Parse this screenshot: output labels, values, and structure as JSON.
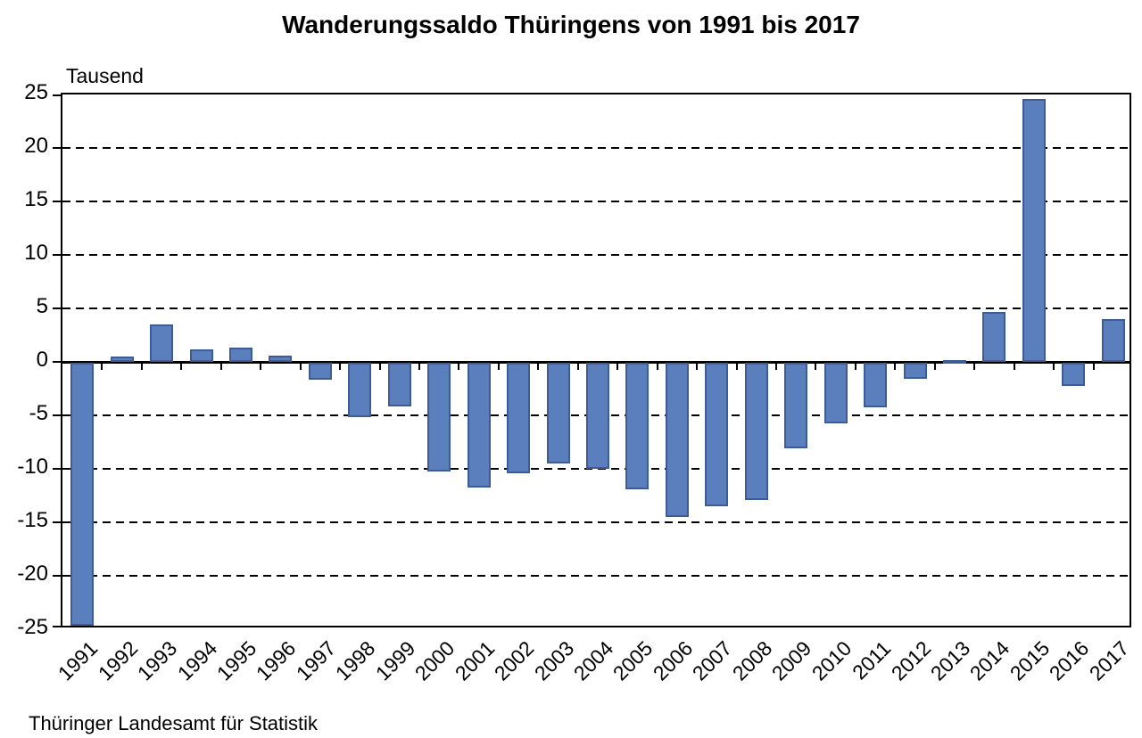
{
  "title": "Wanderungssaldo Thüringens von 1991 bis 2017",
  "unit_label": "Tausend",
  "source": "Thüringer Landesamt für Statistik",
  "colors": {
    "bar_fill": "#5b7ebd",
    "bar_border": "#3d5c96",
    "axis": "#000000",
    "background": "#ffffff"
  },
  "chart_data": {
    "type": "bar",
    "title": "Wanderungssaldo Thüringens von 1991 bis 2017",
    "xlabel": "",
    "ylabel": "Tausend",
    "ylim": [
      -25,
      25
    ],
    "ytick_step": 5,
    "yticks": [
      25,
      20,
      15,
      10,
      5,
      0,
      -5,
      -10,
      -15,
      -20,
      -25
    ],
    "grid": "horizontal dashed, solid zero line, framed plot",
    "legend": "none",
    "categories": [
      "1991",
      "1992",
      "1993",
      "1994",
      "1995",
      "1996",
      "1997",
      "1998",
      "1999",
      "2000",
      "2001",
      "2002",
      "2003",
      "2004",
      "2005",
      "2006",
      "2007",
      "2008",
      "2009",
      "2010",
      "2011",
      "2012",
      "2013",
      "2014",
      "2015",
      "2016",
      "2017"
    ],
    "values": [
      -24.6,
      0.5,
      3.5,
      1.2,
      1.3,
      0.6,
      -1.6,
      -5.1,
      -4.1,
      -10.2,
      -11.7,
      -10.3,
      -9.4,
      -9.9,
      -11.8,
      -14.4,
      -13.4,
      -12.8,
      -8.0,
      -5.7,
      -4.2,
      -1.5,
      0.1,
      4.7,
      24.6,
      -2.2,
      4.0
    ]
  }
}
